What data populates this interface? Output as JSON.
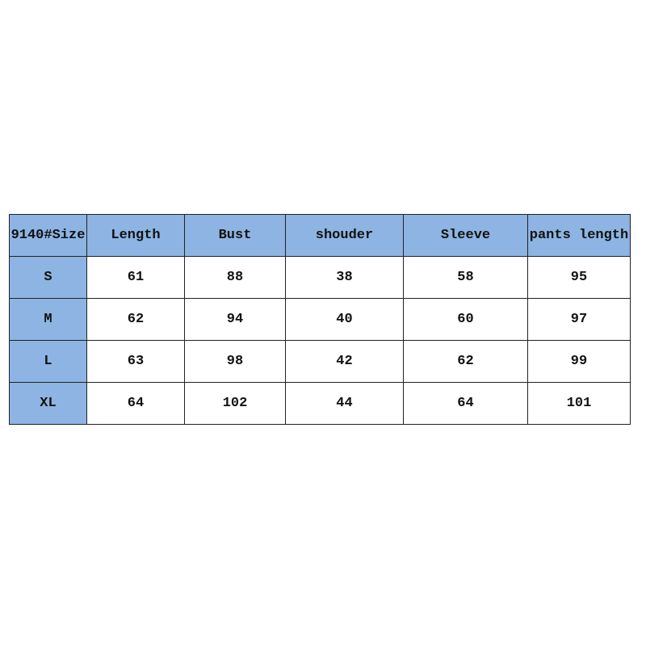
{
  "colors": {
    "header": "#8db4e2",
    "cell": "#ffffff",
    "border": "#222222"
  },
  "table": {
    "headers": [
      "9140#Size",
      "Length",
      "Bust",
      "shouder",
      "Sleeve",
      "pants length"
    ],
    "rows": [
      [
        "S",
        "61",
        "88",
        "38",
        "58",
        "95"
      ],
      [
        "M",
        "62",
        "94",
        "40",
        "60",
        "97"
      ],
      [
        "L",
        "63",
        "98",
        "42",
        "62",
        "99"
      ],
      [
        "XL",
        "64",
        "102",
        "44",
        "64",
        "101"
      ]
    ]
  }
}
